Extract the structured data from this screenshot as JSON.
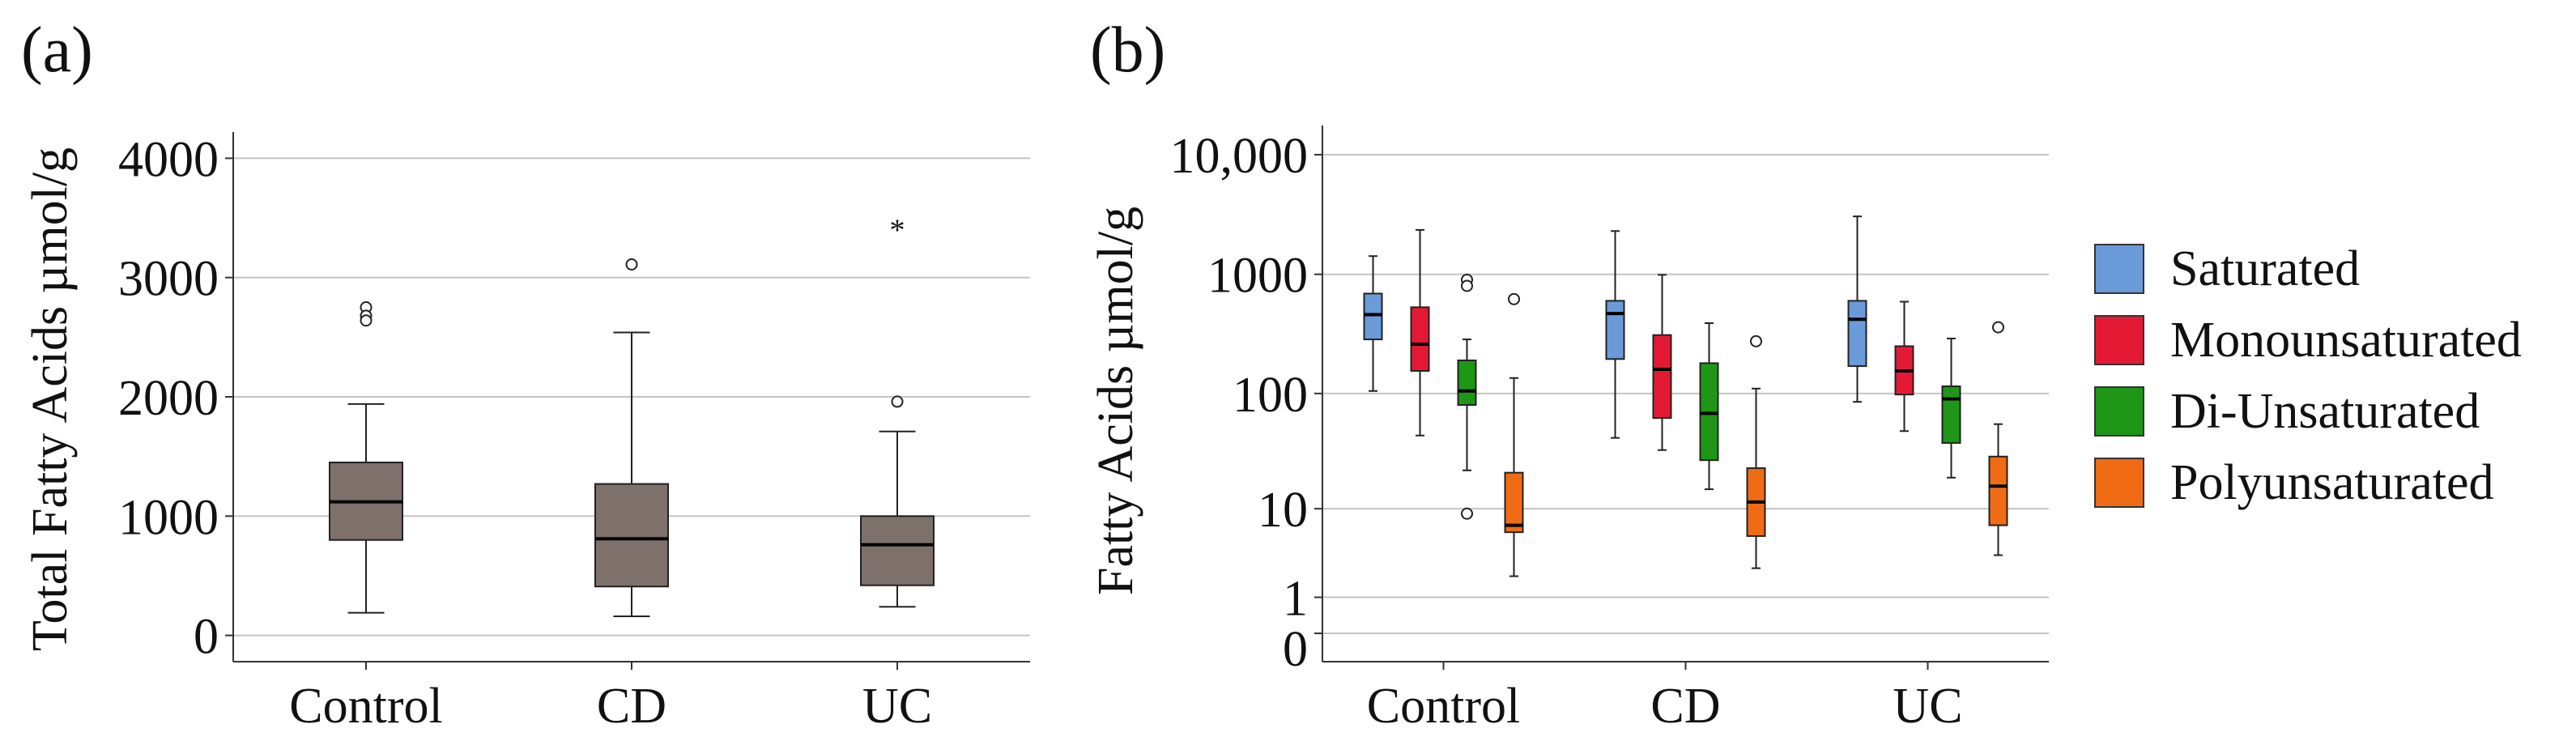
{
  "chart_data": [
    {
      "panel_label": "(a)",
      "type": "box",
      "ylabel": "Total Fatty Acids µmol/g",
      "xlabel": "",
      "y_scale": "linear",
      "ylim": [
        -220,
        4220
      ],
      "y_ticks": [
        0,
        1000,
        2000,
        3000,
        4000
      ],
      "y_tick_labels": [
        "0",
        "1000",
        "2000",
        "3000",
        "4000"
      ],
      "grid": "horizontal",
      "categories": [
        "Control",
        "CD",
        "UC"
      ],
      "box_color": "#7e706a",
      "boxes": [
        {
          "category": "Control",
          "whisker_low": 190,
          "q1": 800,
          "median": 1120,
          "q3": 1450,
          "whisker_high": 1940,
          "outliers": [
            {
              "value": 2750,
              "marker": "circle"
            },
            {
              "value": 2680,
              "marker": "circle"
            },
            {
              "value": 2640,
              "marker": "circle"
            }
          ]
        },
        {
          "category": "CD",
          "whisker_low": 160,
          "q1": 410,
          "median": 810,
          "q3": 1270,
          "whisker_high": 2540,
          "outliers": [
            {
              "value": 3110,
              "marker": "circle"
            }
          ]
        },
        {
          "category": "UC",
          "whisker_low": 240,
          "q1": 420,
          "median": 760,
          "q3": 1000,
          "whisker_high": 1710,
          "outliers": [
            {
              "value": 1960,
              "marker": "circle"
            },
            {
              "value": 3410,
              "marker": "star"
            }
          ]
        }
      ]
    },
    {
      "panel_label": "(b)",
      "type": "box",
      "ylabel": "Fatty Acids µmol/g",
      "xlabel": "",
      "y_scale": "log1p",
      "ylim": [
        -0.2,
        10000
      ],
      "y_ticks": [
        0,
        1,
        10,
        100,
        1000,
        10000
      ],
      "y_tick_labels": [
        "0",
        "1",
        "10",
        "100",
        "1000",
        "10,000"
      ],
      "grid": "horizontal",
      "categories": [
        "Control",
        "CD",
        "UC"
      ],
      "legend_position": "right",
      "series": [
        {
          "name": "Saturated",
          "color": "#6a9bd8",
          "boxes": [
            {
              "category": "Control",
              "whisker_low": 105,
              "q1": 285,
              "median": 460,
              "q3": 690,
              "whisker_high": 1420,
              "outliers": []
            },
            {
              "category": "CD",
              "whisker_low": 42,
              "q1": 195,
              "median": 470,
              "q3": 600,
              "whisker_high": 2300,
              "outliers": []
            },
            {
              "category": "UC",
              "whisker_low": 85,
              "q1": 170,
              "median": 420,
              "q3": 600,
              "whisker_high": 3050,
              "outliers": []
            }
          ]
        },
        {
          "name": "Monounsaturated",
          "color": "#e41a35",
          "boxes": [
            {
              "category": "Control",
              "whisker_low": 44,
              "q1": 155,
              "median": 260,
              "q3": 530,
              "whisker_high": 2350,
              "outliers": []
            },
            {
              "category": "CD",
              "whisker_low": 33,
              "q1": 62,
              "median": 160,
              "q3": 310,
              "whisker_high": 990,
              "outliers": []
            },
            {
              "category": "UC",
              "whisker_low": 48,
              "q1": 98,
              "median": 155,
              "q3": 250,
              "whisker_high": 590,
              "outliers": []
            }
          ]
        },
        {
          "name": "Di-Unsaturated",
          "color": "#1e9616",
          "boxes": [
            {
              "category": "Control",
              "whisker_low": 22,
              "q1": 80,
              "median": 105,
              "q3": 190,
              "whisker_high": 285,
              "outliers": [
                {
                  "value": 900,
                  "marker": "circle"
                },
                {
                  "value": 800,
                  "marker": "circle"
                },
                {
                  "value": 9,
                  "marker": "circle"
                }
              ]
            },
            {
              "category": "CD",
              "whisker_low": 15,
              "q1": 27,
              "median": 68,
              "q3": 180,
              "whisker_high": 390,
              "outliers": []
            },
            {
              "category": "UC",
              "whisker_low": 19,
              "q1": 38,
              "median": 90,
              "q3": 115,
              "whisker_high": 290,
              "outliers": []
            }
          ]
        },
        {
          "name": "Polyunsaturated",
          "color": "#f06c14",
          "boxes": [
            {
              "category": "Control",
              "whisker_low": 2,
              "q1": 6,
              "median": 7,
              "q3": 21,
              "whisker_high": 135,
              "outliers": [
                {
                  "value": 620,
                  "marker": "circle"
                }
              ]
            },
            {
              "category": "CD",
              "whisker_low": 2.5,
              "q1": 5.5,
              "median": 11.5,
              "q3": 23,
              "whisker_high": 110,
              "outliers": [
                {
                  "value": 275,
                  "marker": "circle"
                }
              ]
            },
            {
              "category": "UC",
              "whisker_low": 3.5,
              "q1": 7,
              "median": 16,
              "q3": 29,
              "whisker_high": 55,
              "outliers": [
                {
                  "value": 360,
                  "marker": "circle"
                }
              ]
            }
          ]
        }
      ]
    }
  ]
}
